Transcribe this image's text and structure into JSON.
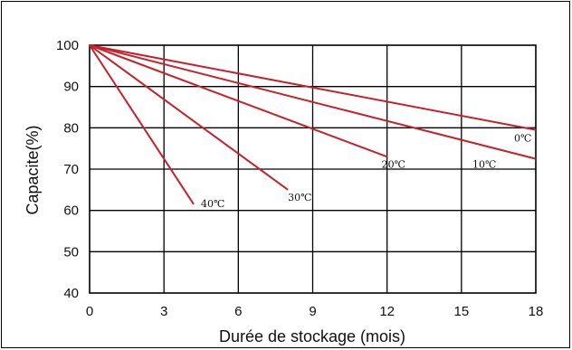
{
  "chart_data": {
    "type": "line",
    "title": "",
    "xlabel": "Durée de stockage (mois)",
    "ylabel": "Capacite(%)",
    "xlim": [
      0,
      18
    ],
    "ylim": [
      40,
      100
    ],
    "x_ticks": [
      0,
      3,
      6,
      9,
      12,
      15,
      18
    ],
    "y_ticks": [
      40,
      50,
      60,
      70,
      80,
      90,
      100
    ],
    "grid": true,
    "line_color": "#c8202a",
    "grid_color": "#000000",
    "series": [
      {
        "name": "0℃",
        "x": [
          0,
          18
        ],
        "y": [
          100,
          79.5
        ]
      },
      {
        "name": "10℃",
        "x": [
          0,
          18
        ],
        "y": [
          100,
          72.5
        ]
      },
      {
        "name": "20℃",
        "x": [
          0,
          12
        ],
        "y": [
          100,
          73
        ]
      },
      {
        "name": "30℃",
        "x": [
          0,
          8
        ],
        "y": [
          100,
          65
        ]
      },
      {
        "name": "40℃",
        "x": [
          0,
          4.2
        ],
        "y": [
          100,
          61.5
        ]
      }
    ]
  }
}
